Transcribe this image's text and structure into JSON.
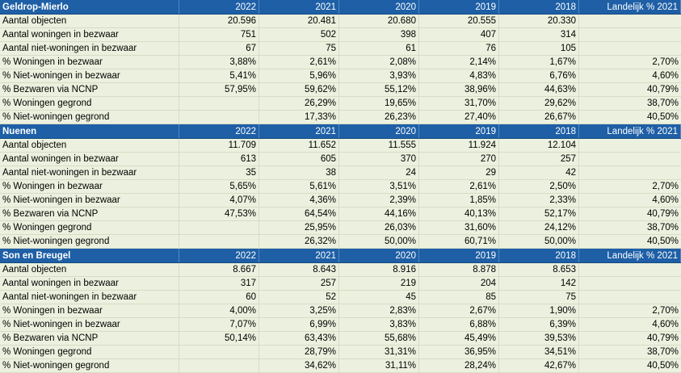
{
  "colors": {
    "header_bg": "#1e5fa6",
    "body_bg": "#ebf1de",
    "header_text": "#ffffff"
  },
  "sections": [
    {
      "name": "Geldrop-Mierlo",
      "years": [
        "2022",
        "2021",
        "2020",
        "2019",
        "2018"
      ],
      "national_label": "Landelijk % 2021",
      "rows": [
        {
          "label": "Aantal objecten",
          "values": [
            "20.596",
            "20.481",
            "20.680",
            "20.555",
            "20.330"
          ],
          "national": ""
        },
        {
          "label": "Aantal woningen in bezwaar",
          "values": [
            "751",
            "502",
            "398",
            "407",
            "314"
          ],
          "national": ""
        },
        {
          "label": "Aantal niet-woningen in bezwaar",
          "values": [
            "67",
            "75",
            "61",
            "76",
            "105"
          ],
          "national": ""
        },
        {
          "label": "% Woningen in bezwaar",
          "values": [
            "3,88%",
            "2,61%",
            "2,08%",
            "2,14%",
            "1,67%"
          ],
          "national": "2,70%"
        },
        {
          "label": "% Niet-woningen in bezwaar",
          "values": [
            "5,41%",
            "5,96%",
            "3,93%",
            "4,83%",
            "6,76%"
          ],
          "national": "4,60%"
        },
        {
          "label": "% Bezwaren via NCNP",
          "values": [
            "57,95%",
            "59,62%",
            "55,12%",
            "38,96%",
            "44,63%"
          ],
          "national": "40,79%"
        },
        {
          "label": "% Woningen gegrond",
          "values": [
            "",
            "26,29%",
            "19,65%",
            "31,70%",
            "29,62%"
          ],
          "national": "38,70%"
        },
        {
          "label": "% Niet-woningen gegrond",
          "values": [
            "",
            "17,33%",
            "26,23%",
            "27,40%",
            "26,67%"
          ],
          "national": "40,50%"
        }
      ]
    },
    {
      "name": "Nuenen",
      "years": [
        "2022",
        "2021",
        "2020",
        "2019",
        "2018"
      ],
      "national_label": "Landelijk % 2021",
      "rows": [
        {
          "label": "Aantal objecten",
          "values": [
            "11.709",
            "11.652",
            "11.555",
            "11.924",
            "12.104"
          ],
          "national": ""
        },
        {
          "label": "Aantal woningen in bezwaar",
          "values": [
            "613",
            "605",
            "370",
            "270",
            "257"
          ],
          "national": ""
        },
        {
          "label": "Aantal niet-woningen in bezwaar",
          "values": [
            "35",
            "38",
            "24",
            "29",
            "42"
          ],
          "national": ""
        },
        {
          "label": "% Woningen in bezwaar",
          "values": [
            "5,65%",
            "5,61%",
            "3,51%",
            "2,61%",
            "2,50%"
          ],
          "national": "2,70%"
        },
        {
          "label": "% Niet-woningen in bezwaar",
          "values": [
            "4,07%",
            "4,36%",
            "2,39%",
            "1,85%",
            "2,33%"
          ],
          "national": "4,60%"
        },
        {
          "label": "% Bezwaren via NCNP",
          "values": [
            "47,53%",
            "64,54%",
            "44,16%",
            "40,13%",
            "52,17%"
          ],
          "national": "40,79%"
        },
        {
          "label": "% Woningen gegrond",
          "values": [
            "",
            "25,95%",
            "26,03%",
            "31,60%",
            "24,12%"
          ],
          "national": "38,70%"
        },
        {
          "label": "% Niet-woningen gegrond",
          "values": [
            "",
            "26,32%",
            "50,00%",
            "60,71%",
            "50,00%"
          ],
          "national": "40,50%"
        }
      ]
    },
    {
      "name": "Son en Breugel",
      "years": [
        "2022",
        "2021",
        "2020",
        "2019",
        "2018"
      ],
      "national_label": "Landelijk % 2021",
      "rows": [
        {
          "label": "Aantal objecten",
          "values": [
            "8.667",
            "8.643",
            "8.916",
            "8.878",
            "8.653"
          ],
          "national": ""
        },
        {
          "label": "Aantal woningen in bezwaar",
          "values": [
            "317",
            "257",
            "219",
            "204",
            "142"
          ],
          "national": ""
        },
        {
          "label": "Aantal niet-woningen in bezwaar",
          "values": [
            "60",
            "52",
            "45",
            "85",
            "75"
          ],
          "national": ""
        },
        {
          "label": "% Woningen in bezwaar",
          "values": [
            "4,00%",
            "3,25%",
            "2,83%",
            "2,67%",
            "1,90%"
          ],
          "national": "2,70%"
        },
        {
          "label": "% Niet-woningen in bezwaar",
          "values": [
            "7,07%",
            "6,99%",
            "3,83%",
            "6,88%",
            "6,39%"
          ],
          "national": "4,60%"
        },
        {
          "label": "% Bezwaren via NCNP",
          "values": [
            "50,14%",
            "63,43%",
            "55,68%",
            "45,49%",
            "39,53%"
          ],
          "national": "40,79%"
        },
        {
          "label": "% Woningen gegrond",
          "values": [
            "",
            "28,79%",
            "31,31%",
            "36,95%",
            "34,51%"
          ],
          "national": "38,70%"
        },
        {
          "label": "% Niet-woningen gegrond",
          "values": [
            "",
            "34,62%",
            "31,11%",
            "28,24%",
            "42,67%"
          ],
          "national": "40,50%"
        }
      ]
    }
  ]
}
